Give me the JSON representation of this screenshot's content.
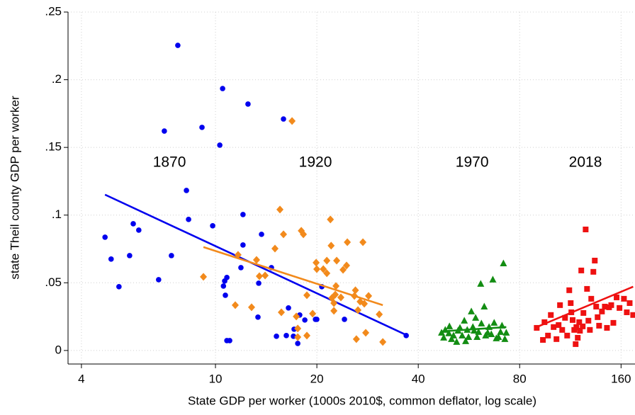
{
  "chart_data": {
    "type": "scatter",
    "x_label": "State GDP per worker (1000s 2010$, common deflator, log scale)",
    "y_label": "state Theil county GDP per worker",
    "xlim": [
      3.65,
      176
    ],
    "ylim": [
      -0.01,
      0.25
    ],
    "x_log": true,
    "grid": true,
    "xticks": [
      4,
      10,
      20,
      40,
      80,
      160
    ],
    "yticks": [
      {
        "value": 0,
        "label": "0"
      },
      {
        "value": 0.05,
        "label": ".05"
      },
      {
        "value": 0.1,
        "label": ".1"
      },
      {
        "value": 0.15,
        "label": ".15"
      },
      {
        "value": 0.2,
        "label": ".2"
      },
      {
        "value": 0.25,
        "label": ".25"
      }
    ],
    "annotations": [
      {
        "text": "1870",
        "x": 7.3,
        "y": 0.1386
      },
      {
        "text": "1920",
        "x": 19.8,
        "y": 0.1386
      },
      {
        "text": "1970",
        "x": 57.8,
        "y": 0.1386
      },
      {
        "text": "2018",
        "x": 125.4,
        "y": 0.1386
      }
    ],
    "series": [
      {
        "color": "#0000ee",
        "marker": "circle",
        "x": [
          4.7,
          4.9,
          5.17,
          5.56,
          5.7,
          5.92,
          6.78,
          7.05,
          7.4,
          7.73,
          8.2,
          8.32,
          9.12,
          9.81,
          10.3,
          10.5,
          10.56,
          10.65,
          10.81,
          10.7,
          10.81,
          11.02,
          12.07,
          12.49,
          11.9,
          13.44,
          13.7,
          13.37,
          14.66,
          15.17,
          16.23,
          16.47,
          17.12,
          17.04,
          17.55,
          17.79,
          18.42,
          19.81,
          20.69,
          19.99,
          24.15,
          36.83,
          15.92,
          12.07
        ],
        "values": [
          0.0837,
          0.0675,
          0.0471,
          0.0701,
          0.0936,
          0.0889,
          0.0523,
          0.1621,
          0.0701,
          0.2254,
          0.1182,
          0.0968,
          0.1648,
          0.0921,
          0.1517,
          0.1935,
          0.0476,
          0.0513,
          0.0539,
          0.0408,
          0.0073,
          0.0073,
          0.0779,
          0.182,
          0.0612,
          0.0497,
          0.0858,
          0.0246,
          0.0612,
          0.0105,
          0.011,
          0.0314,
          0.0157,
          0.0105,
          0.0052,
          0.0262,
          0.0225,
          0.023,
          0.0471,
          0.023,
          0.023,
          0.011,
          0.171,
          0.1004
        ],
        "fit_x": [
          4.7,
          36.83
        ],
        "fit_y": [
          0.1151,
          0.0115
        ]
      },
      {
        "color": "#f28a1c",
        "marker": "diamond",
        "x": [
          9.21,
          11.45,
          12.8,
          11.67,
          13.24,
          13.5,
          14.04,
          15.02,
          15.54,
          15.92,
          15.69,
          17.98,
          18.24,
          17.55,
          17.38,
          17.55,
          18.68,
          18.68,
          19.43,
          19.99,
          19.9,
          20.9,
          21.41,
          21.41,
          21.94,
          22.05,
          22.15,
          22.47,
          22.79,
          22.68,
          22.47,
          22.9,
          23.57,
          23.92,
          24.63,
          24.5,
          25.85,
          26.03,
          26.49,
          26.2,
          26.88,
          27.4,
          27.66,
          27.93,
          28.48,
          30.64,
          31.39,
          16.88
        ],
        "values": [
          0.0544,
          0.0335,
          0.0319,
          0.0706,
          0.0669,
          0.0549,
          0.0554,
          0.0753,
          0.1041,
          0.0858,
          0.0282,
          0.0884,
          0.0858,
          0.0162,
          0.0251,
          0.0099,
          0.011,
          0.0408,
          0.0272,
          0.0601,
          0.0649,
          0.0601,
          0.057,
          0.0664,
          0.0968,
          0.0774,
          0.0387,
          0.0293,
          0.0476,
          0.0413,
          0.035,
          0.0664,
          0.0392,
          0.0596,
          0.08,
          0.0628,
          0.0403,
          0.0445,
          0.0298,
          0.0084,
          0.0361,
          0.08,
          0.0345,
          0.0131,
          0.0403,
          0.0267,
          0.0063,
          0.1695
        ],
        "fit_x": [
          9.21,
          31.39
        ],
        "fit_y": [
          0.0764,
          0.0335
        ]
      },
      {
        "color": "#138d13",
        "marker": "triangle",
        "x": [
          46.9,
          47.6,
          48.1,
          49.3,
          49.5,
          50.2,
          50.9,
          52.0,
          52.5,
          53.2,
          54.0,
          54.8,
          55.3,
          55.9,
          56.4,
          57.5,
          58.1,
          58.6,
          59.2,
          59.8,
          60.4,
          61.3,
          61.6,
          62.8,
          63.4,
          64.3,
          64.9,
          65.9,
          66.6,
          67.2,
          68.2,
          69.2,
          70.2,
          70.9,
          71.6,
          72.3,
          73.0
        ],
        "values": [
          0.0131,
          0.0094,
          0.0152,
          0.0126,
          0.0178,
          0.0084,
          0.011,
          0.0063,
          0.0146,
          0.0167,
          0.011,
          0.022,
          0.0068,
          0.0152,
          0.0099,
          0.0288,
          0.0173,
          0.0146,
          0.0241,
          0.0099,
          0.0136,
          0.0492,
          0.0199,
          0.0324,
          0.011,
          0.0131,
          0.0173,
          0.012,
          0.0523,
          0.0204,
          0.0089,
          0.0099,
          0.0136,
          0.0183,
          0.0643,
          0.0084,
          0.0131
        ],
        "fit_x": [
          46.9,
          73.0
        ],
        "fit_y": [
          0.0141,
          0.0173
        ]
      },
      {
        "color": "#ee1111",
        "marker": "square",
        "x": [
          89.9,
          93.8,
          94.8,
          97.1,
          99.0,
          100.9,
          102.9,
          104.4,
          105.4,
          107.0,
          109.1,
          110.7,
          112.3,
          113.4,
          113.9,
          114.9,
          116.2,
          117.3,
          117.9,
          119.0,
          120.2,
          120.8,
          121.9,
          123.1,
          123.7,
          125.6,
          126.8,
          128,
          129.3,
          130.5,
          132.4,
          133.7,
          135.0,
          136.3,
          137.7,
          140.4,
          143.2,
          145.3,
          147.4,
          149.6,
          151.8,
          155.2,
          158.3,
          163.2,
          166.4,
          169.7,
          173.8
        ],
        "values": [
          0.0167,
          0.0078,
          0.0209,
          0.011,
          0.0262,
          0.0173,
          0.0084,
          0.0188,
          0.0335,
          0.0152,
          0.0241,
          0.011,
          0.0445,
          0.035,
          0.0282,
          0.0225,
          0.0152,
          0.0047,
          0.0173,
          0.0094,
          0.0209,
          0.0146,
          0.0591,
          0.0178,
          0.0277,
          0.0894,
          0.0455,
          0.022,
          0.0152,
          0.0382,
          0.0581,
          0.0664,
          0.0324,
          0.0246,
          0.0183,
          0.0288,
          0.0324,
          0.0167,
          0.0319,
          0.0335,
          0.0204,
          0.0392,
          0.0314,
          0.0382,
          0.0282,
          0.035,
          0.0262
        ],
        "fit_x": [
          89.9,
          173.8
        ],
        "fit_y": [
          0.0173,
          0.0471
        ]
      }
    ]
  }
}
